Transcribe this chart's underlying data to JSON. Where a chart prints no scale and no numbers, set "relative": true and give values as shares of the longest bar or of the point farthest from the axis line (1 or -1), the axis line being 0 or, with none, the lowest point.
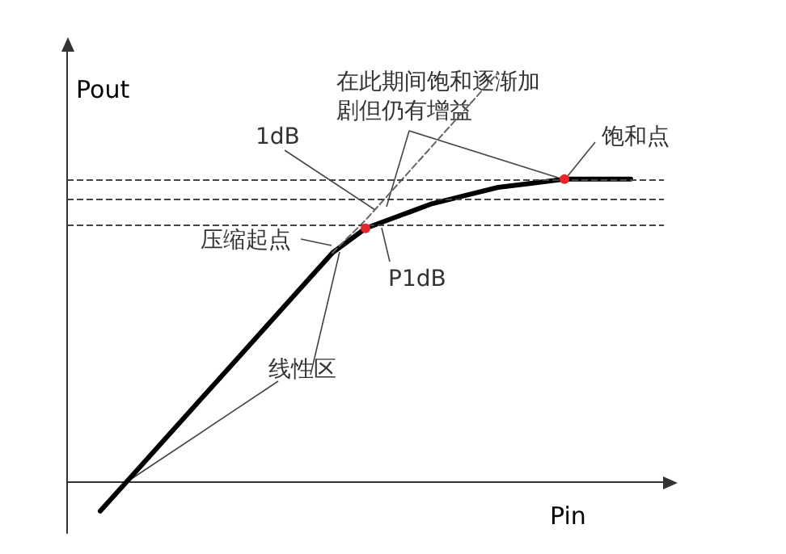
{
  "chart_data": {
    "type": "line",
    "relative": true,
    "xlabel": "Pin",
    "ylabel": "Pout",
    "marker": "none",
    "categories": [
      null,
      null,
      null,
      null,
      null,
      null,
      null,
      null,
      null,
      null,
      null,
      null,
      null,
      null,
      null,
      null,
      null,
      null,
      null
    ],
    "series": [
      {
        "color": "#000000",
        "line_style": "solid",
        "values": [
          null,
          -0.07,
          0.02,
          0.11,
          0.2,
          0.29,
          0.38,
          0.47,
          0.56,
          0.62,
          0.65,
          0.68,
          0.7,
          0.72,
          0.73,
          0.74,
          0.74,
          0.74,
          null
        ]
      },
      {
        "type": "line",
        "color": "#666666",
        "line_style": "dashed",
        "values": [
          null,
          null,
          null,
          null,
          null,
          null,
          null,
          null,
          0.56,
          0.64,
          0.73,
          0.82,
          0.91,
          1.0,
          null,
          null,
          null,
          null,
          null
        ]
      }
    ],
    "ref_lines": [
      {
        "axis": "y",
        "value": 0.69,
        "color": "#444444",
        "line_style": "dashed"
      },
      {
        "axis": "y",
        "value": 0.63,
        "color": "#444444",
        "line_style": "dashed"
      },
      {
        "axis": "y",
        "value": 0.74,
        "color": "#444444",
        "line_style": "dashed"
      }
    ],
    "annotations": [
      "在此期间饱和逐渐加剧但仍有增益",
      "1dB",
      {
        "text": "饱和点",
        "y": 0.74
      },
      "压缩起点",
      {
        "text": "P1dB",
        "y": 0.62
      },
      "线性区"
    ]
  }
}
